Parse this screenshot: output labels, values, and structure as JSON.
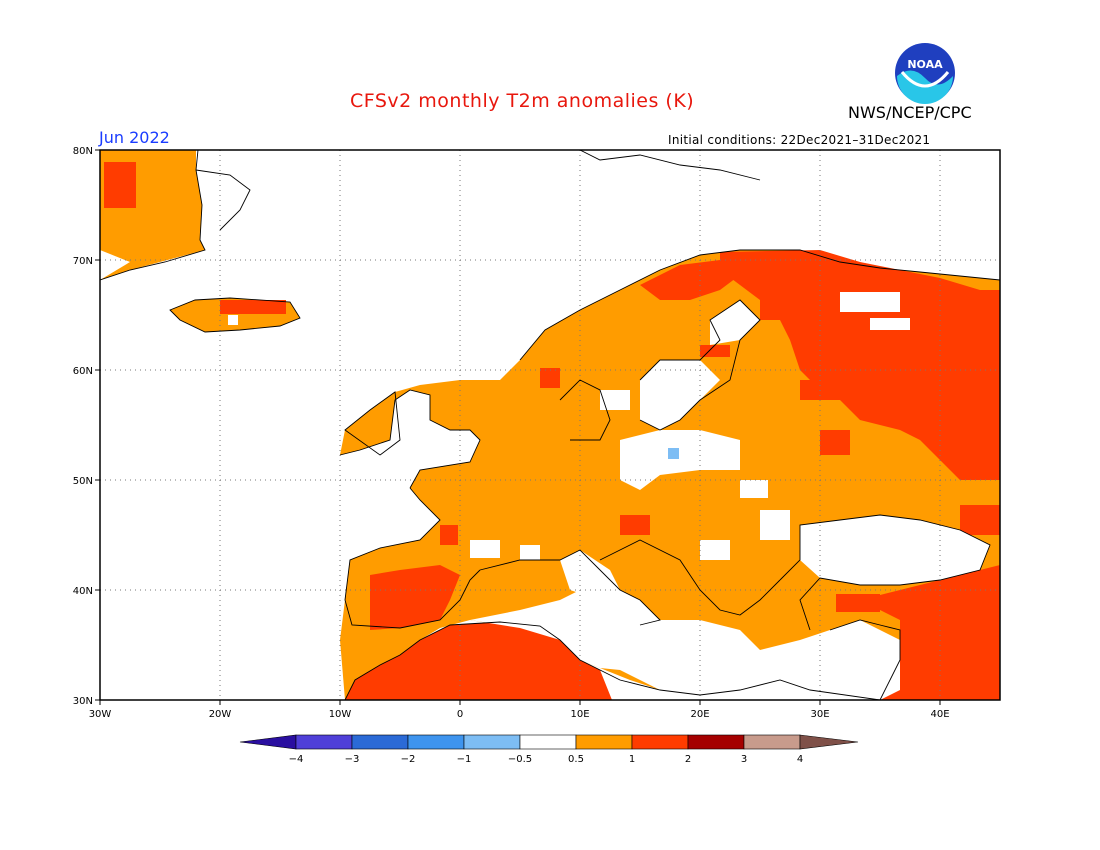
{
  "title": "CFSv2 monthly T2m anomalies (K)",
  "agency": "NWS/NCEP/CPC",
  "logo_text": "NOAA",
  "valid_month": "Jun 2022",
  "initial_conditions": "Initial conditions: 22Dec2021–31Dec2021",
  "map": {
    "lat_ticks": [
      {
        "value": 80,
        "label": "80N"
      },
      {
        "value": 70,
        "label": "70N"
      },
      {
        "value": 60,
        "label": "60N"
      },
      {
        "value": 50,
        "label": "50N"
      },
      {
        "value": 40,
        "label": "40N"
      },
      {
        "value": 30,
        "label": "30N"
      }
    ],
    "lon_ticks": [
      {
        "value": -30,
        "label": "30W"
      },
      {
        "value": -20,
        "label": "20W"
      },
      {
        "value": -10,
        "label": "10W"
      },
      {
        "value": 0,
        "label": "0"
      },
      {
        "value": 10,
        "label": "10E"
      },
      {
        "value": 20,
        "label": "20E"
      },
      {
        "value": 30,
        "label": "30E"
      },
      {
        "value": 40,
        "label": "40E"
      }
    ],
    "lon_range": [
      -30,
      45
    ],
    "lat_range": [
      30,
      80
    ],
    "grid": "dotted"
  },
  "colorbar": {
    "colors": [
      "#2a0fa0",
      "#4f3fd8",
      "#2b6ad6",
      "#3e94ee",
      "#7dbdf4",
      "#ffffff",
      "#ff9c00",
      "#ff3c00",
      "#a50000",
      "#c89b8c",
      "#7f5048"
    ],
    "labels": [
      "−4",
      "−3",
      "−2",
      "−1",
      "−0.5",
      "0.5",
      "1",
      "2",
      "3",
      "4"
    ]
  },
  "colors": {
    "anom_05_1": "#ff9c00",
    "anom_1_2": "#ff3c00",
    "anom_neg": "#7dbdf4",
    "title": "#e8170d",
    "month": "#1a3cff"
  }
}
